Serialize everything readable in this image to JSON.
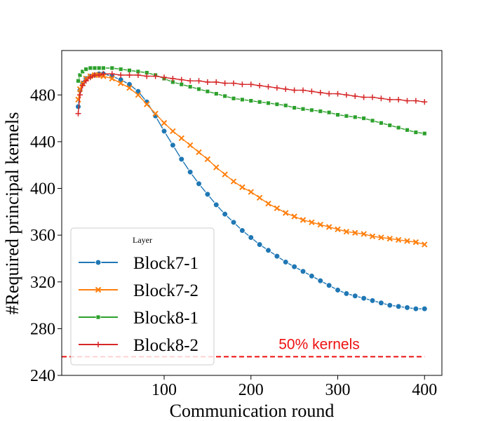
{
  "chart_data": {
    "type": "line",
    "xlabel": "Communication round",
    "ylabel": "#Required principal kernels",
    "xlim": [
      -18,
      420
    ],
    "ylim": [
      240,
      518
    ],
    "xticks": [
      100,
      200,
      300,
      400
    ],
    "yticks": [
      240,
      280,
      320,
      360,
      400,
      440,
      480
    ],
    "grid": false,
    "legend": {
      "title": "Layer",
      "position": "lower-left"
    },
    "series": [
      {
        "name": "Block7-1",
        "color": "#1f77b4",
        "marker": "circle",
        "x": [
          1,
          3,
          6,
          10,
          15,
          20,
          25,
          30,
          40,
          50,
          60,
          70,
          80,
          90,
          100,
          110,
          120,
          130,
          140,
          150,
          160,
          170,
          180,
          190,
          200,
          210,
          220,
          230,
          240,
          250,
          260,
          270,
          280,
          290,
          300,
          310,
          320,
          330,
          340,
          350,
          360,
          370,
          380,
          390,
          400
        ],
        "y": [
          470,
          484,
          490,
          494,
          496,
          497,
          498,
          498,
          496,
          493,
          489,
          483,
          474,
          462,
          449,
          437,
          425,
          414,
          404,
          395,
          386,
          378,
          371,
          364,
          358,
          352,
          347,
          342,
          337,
          333,
          329,
          325,
          321,
          317,
          313,
          310,
          308,
          306,
          304,
          302,
          300,
          299,
          298,
          297,
          297
        ]
      },
      {
        "name": "Block7-2",
        "color": "#ff7f0e",
        "marker": "x",
        "x": [
          1,
          3,
          6,
          10,
          15,
          20,
          25,
          30,
          40,
          50,
          60,
          70,
          80,
          90,
          100,
          110,
          120,
          130,
          140,
          150,
          160,
          170,
          180,
          190,
          200,
          210,
          220,
          230,
          240,
          250,
          260,
          270,
          280,
          290,
          300,
          310,
          320,
          330,
          340,
          350,
          360,
          370,
          380,
          390,
          400
        ],
        "y": [
          476,
          485,
          490,
          494,
          496,
          497,
          497,
          496,
          494,
          490,
          486,
          480,
          472,
          464,
          456,
          449,
          443,
          437,
          431,
          425,
          418,
          412,
          406,
          401,
          397,
          392,
          387,
          383,
          379,
          376,
          373,
          371,
          369,
          367,
          365,
          363,
          362,
          361,
          359,
          358,
          357,
          356,
          355,
          354,
          352
        ]
      },
      {
        "name": "Block8-1",
        "color": "#2ca02c",
        "marker": "square",
        "x": [
          1,
          3,
          6,
          10,
          15,
          20,
          25,
          30,
          40,
          50,
          60,
          70,
          80,
          90,
          100,
          110,
          120,
          130,
          140,
          150,
          160,
          170,
          180,
          190,
          200,
          210,
          220,
          230,
          240,
          250,
          260,
          270,
          280,
          290,
          300,
          310,
          320,
          330,
          340,
          350,
          360,
          370,
          380,
          390,
          400
        ],
        "y": [
          492,
          497,
          500,
          502,
          503,
          503,
          503,
          503,
          503,
          502,
          501,
          500,
          499,
          497,
          494,
          491,
          489,
          487,
          485,
          483,
          481,
          479,
          477,
          476,
          475,
          474,
          473,
          472,
          471,
          469,
          468,
          467,
          466,
          465,
          463,
          462,
          461,
          460,
          458,
          456,
          454,
          452,
          450,
          448,
          447
        ]
      },
      {
        "name": "Block8-2",
        "color": "#d62728",
        "marker": "plus",
        "x": [
          1,
          3,
          6,
          10,
          15,
          20,
          25,
          30,
          40,
          50,
          60,
          70,
          80,
          90,
          100,
          110,
          120,
          130,
          140,
          150,
          160,
          170,
          180,
          190,
          200,
          210,
          220,
          230,
          240,
          250,
          260,
          270,
          280,
          290,
          300,
          310,
          320,
          330,
          340,
          350,
          360,
          370,
          380,
          390,
          400
        ],
        "y": [
          464,
          480,
          488,
          492,
          495,
          497,
          497,
          498,
          498,
          497,
          497,
          497,
          496,
          496,
          495,
          494,
          493,
          492,
          492,
          491,
          491,
          490,
          490,
          489,
          489,
          488,
          487,
          486,
          485,
          484,
          484,
          483,
          482,
          481,
          481,
          480,
          479,
          478,
          478,
          477,
          476,
          476,
          475,
          475,
          474
        ]
      }
    ],
    "reference_line": {
      "y": 256,
      "x_range": [
        -18,
        400
      ],
      "color": "#ee1111",
      "style": "dashed",
      "label": "50% kernels"
    }
  }
}
